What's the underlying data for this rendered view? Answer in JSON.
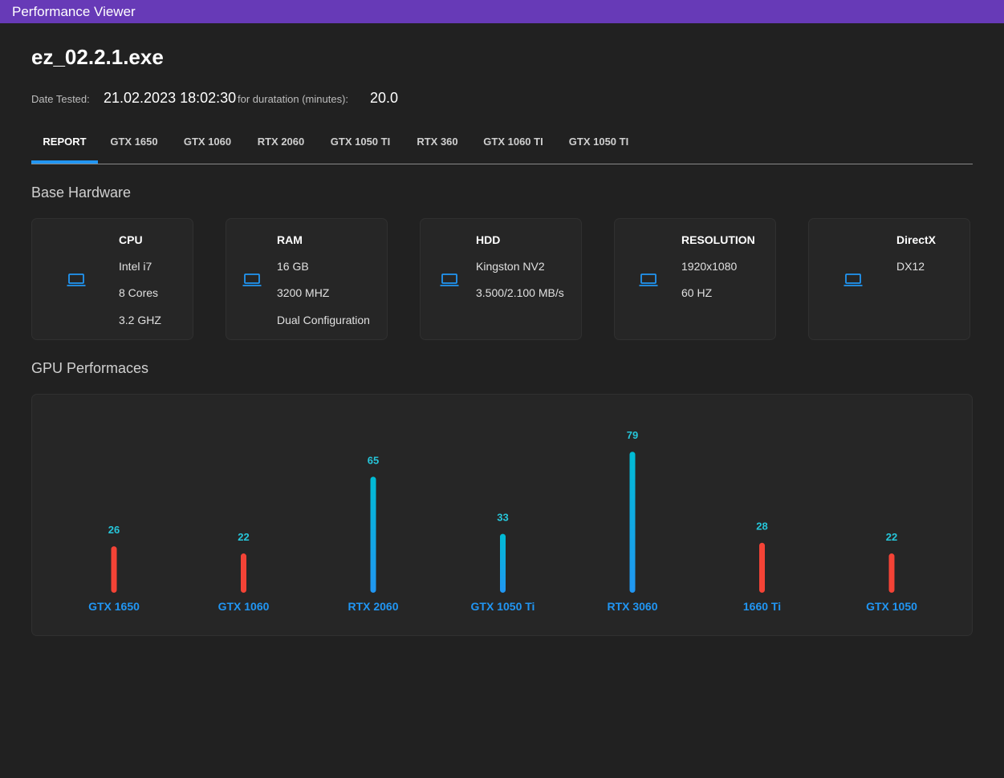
{
  "window": {
    "title": "Performance Viewer"
  },
  "header": {
    "file_name": "ez_02.2.1.exe",
    "date_label": "Date Tested:",
    "date_value": "21.02.2023 18:02:30",
    "duration_label": "for duratation (minutes):",
    "duration_value": "20.0"
  },
  "tabs": [
    {
      "label": "REPORT",
      "active": true
    },
    {
      "label": "GTX 1650"
    },
    {
      "label": "GTX 1060"
    },
    {
      "label": "RTX 2060"
    },
    {
      "label": "GTX 1050 TI"
    },
    {
      "label": "RTX 360"
    },
    {
      "label": "GTX 1060 TI"
    },
    {
      "label": "GTX 1050 TI"
    }
  ],
  "base_hardware": {
    "title": "Base Hardware",
    "icon": "laptop-icon",
    "cards": [
      {
        "title": "CPU",
        "lines": [
          "Intel i7",
          "8 Cores",
          "3.2 GHZ"
        ]
      },
      {
        "title": "RAM",
        "lines": [
          "16 GB",
          "3200 MHZ",
          "Dual Configuration"
        ]
      },
      {
        "title": "HDD",
        "lines": [
          "Kingston NV2",
          "3.500/2.100 MB/s"
        ]
      },
      {
        "title": "RESOLUTION",
        "lines": [
          "1920x1080",
          "60 HZ"
        ]
      },
      {
        "title": "DirectX",
        "lines": [
          "DX12"
        ]
      }
    ]
  },
  "gpu_section": {
    "title": "GPU Performaces"
  },
  "colors": {
    "accent": "#2196f3",
    "titlebar": "#673ab7",
    "low": "#f44336",
    "high_top": "#00bcd4",
    "high_bottom": "#2196f3",
    "value_label": "#26c6da",
    "category_label": "#2196f3"
  },
  "chart_data": {
    "type": "bar",
    "categories": [
      "GTX 1650",
      "GTX 1060",
      "RTX 2060",
      "GTX 1050 Ti",
      "RTX 3060",
      "1660 Ti",
      "GTX 1050"
    ],
    "values": [
      26,
      22,
      65,
      33,
      79,
      28,
      22
    ],
    "status": [
      "low",
      "low",
      "high",
      "high",
      "high",
      "low",
      "low"
    ],
    "ylim": [
      0,
      80
    ],
    "grid": false
  }
}
